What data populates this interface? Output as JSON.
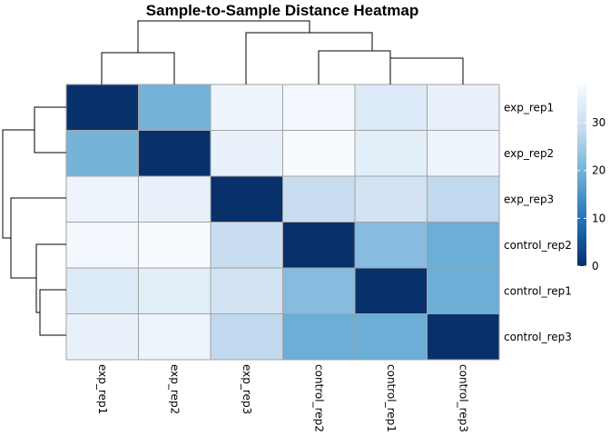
{
  "chart_data": {
    "type": "heatmap",
    "title": "Sample-to-Sample Distance Heatmap",
    "rows": [
      "exp_rep1",
      "exp_rep2",
      "exp_rep3",
      "control_rep2",
      "control_rep1",
      "control_rep3"
    ],
    "columns": [
      "exp_rep1",
      "exp_rep2",
      "exp_rep3",
      "control_rep2",
      "control_rep1",
      "control_rep3"
    ],
    "values": [
      [
        0,
        20,
        36,
        37,
        33,
        35
      ],
      [
        20,
        0,
        35,
        38,
        34,
        36
      ],
      [
        36,
        35,
        0,
        29,
        31,
        28
      ],
      [
        37,
        38,
        29,
        0,
        22,
        19
      ],
      [
        33,
        34,
        31,
        22,
        0,
        19
      ],
      [
        35,
        36,
        28,
        19,
        19,
        0
      ]
    ],
    "colorbar": {
      "min": 0,
      "max": 38,
      "ticks": [
        0,
        10,
        20,
        30
      ],
      "colors": [
        "#08306b",
        "#2171b5",
        "#6baed6",
        "#c6dbef",
        "#f7fbff"
      ]
    },
    "row_dendrogram": "((exp_rep1,exp_rep2),(exp_rep3,(control_rep2,(control_rep1,control_rep3))))",
    "column_dendrogram": "((exp_rep1,exp_rep2),(exp_rep3,(control_rep2,(control_rep1,control_rep3))))",
    "grid": true,
    "legend_position": "right"
  }
}
